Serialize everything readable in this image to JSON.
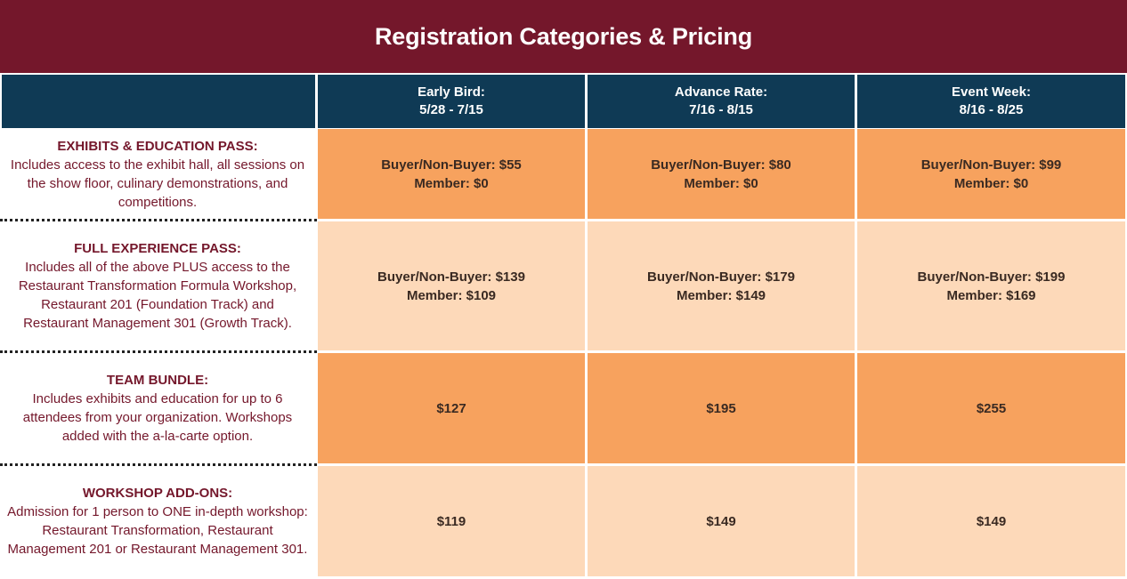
{
  "title": "Registration Categories & Pricing",
  "periods": [
    {
      "name": "Early Bird:",
      "dates": "5/28 - 7/15"
    },
    {
      "name": "Advance Rate:",
      "dates": "7/16 - 8/15"
    },
    {
      "name": "Event Week:",
      "dates": "8/16 - 8/25"
    }
  ],
  "rows": [
    {
      "name": "EXHIBITS & EDUCATION PASS:",
      "desc": "Includes access to the exhibit hall, all sessions on the show floor, culinary demonstrations, and competitions.",
      "prices": [
        {
          "line1": "Buyer/Non-Buyer: $55",
          "line2": "Member: $0"
        },
        {
          "line1": "Buyer/Non-Buyer: $80",
          "line2": "Member: $0"
        },
        {
          "line1": "Buyer/Non-Buyer: $99",
          "line2": "Member: $0"
        }
      ]
    },
    {
      "name": "FULL EXPERIENCE PASS:",
      "desc": "Includes all of the above PLUS access to the Restaurant Transformation Formula Workshop, Restaurant 201 (Foundation Track) and Restaurant Management 301 (Growth Track).",
      "prices": [
        {
          "line1": "Buyer/Non-Buyer: $139",
          "line2": "Member: $109"
        },
        {
          "line1": "Buyer/Non-Buyer: $179",
          "line2": "Member: $149"
        },
        {
          "line1": "Buyer/Non-Buyer: $199",
          "line2": "Member: $169"
        }
      ]
    },
    {
      "name": "TEAM BUNDLE:",
      "desc": "Includes exhibits and education for up to 6 attendees from your organization. Workshops added with the a-la-carte option.",
      "prices": [
        {
          "line1": "$127"
        },
        {
          "line1": "$195"
        },
        {
          "line1": "$255"
        }
      ]
    },
    {
      "name": "WORKSHOP ADD-ONS:",
      "desc": "Admission for 1 person to ONE in-depth workshop: Restaurant Transformation, Restaurant Management 201 or Restaurant Management 301.",
      "prices": [
        {
          "line1": "$119"
        },
        {
          "line1": "$149"
        },
        {
          "line1": "$149"
        }
      ]
    }
  ],
  "colors": {
    "title_bg": "#74172b",
    "header_bg": "#0f3a55",
    "dark_cell": "#f7a25e",
    "light_cell": "#fdd9b9",
    "label_text": "#74172b"
  }
}
